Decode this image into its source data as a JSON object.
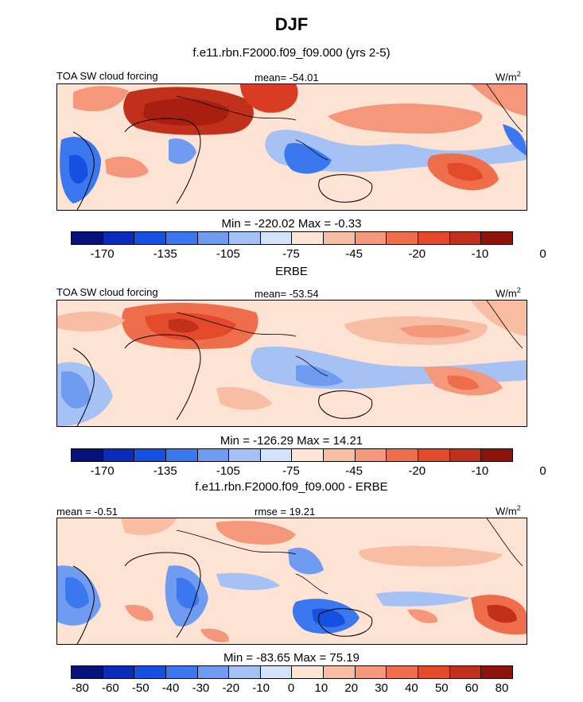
{
  "season": "DJF",
  "colors": {
    "abs": [
      "#08107a",
      "#0a2cb8",
      "#1650e0",
      "#3b78f0",
      "#6f9cf0",
      "#a6c2f4",
      "#d3e3fb",
      "#fde5d6",
      "#f8bea3",
      "#f4977a",
      "#ee6e4c",
      "#e24a2a",
      "#c0301a",
      "#8e140a"
    ],
    "diff": [
      "#08107a",
      "#0a2cb8",
      "#1650e0",
      "#3b78f0",
      "#6f9cf0",
      "#a6c2f4",
      "#d3e3fb",
      "#fde5d6",
      "#f8bea3",
      "#f4977a",
      "#ee6e4c",
      "#e24a2a",
      "#c0301a",
      "#8e140a"
    ]
  },
  "chart_data": [
    {
      "type": "heatmap",
      "title": "f.e11.rbn.F2000.f09_f09.000 (yrs 2-5)",
      "field_label": "TOA SW cloud forcing",
      "mean_label": "mean= -54.01",
      "units": "W/m",
      "units_exp": "2",
      "minmax_label": "Min = -220.02 Max =  -0.33",
      "min": -220.02,
      "max": -0.33,
      "mean": -54.01,
      "colorbar_ticks": [
        "-170",
        "-135",
        "-105",
        "-75",
        "-45",
        "-20",
        "-10",
        "0"
      ]
    },
    {
      "type": "heatmap",
      "title": "ERBE",
      "field_label": "TOA SW cloud forcing",
      "mean_label": "mean= -53.54",
      "units": "W/m",
      "units_exp": "2",
      "minmax_label": "Min = -126.29 Max =  14.21",
      "min": -126.29,
      "max": 14.21,
      "mean": -53.54,
      "colorbar_ticks": [
        "-170",
        "-135",
        "-105",
        "-75",
        "-45",
        "-20",
        "-10",
        "0"
      ]
    },
    {
      "type": "heatmap",
      "title": "f.e11.rbn.F2000.f09_f09.000 - ERBE",
      "mean_label": "mean =  -0.51",
      "rmse_label": "rmse =  19.21",
      "units": "W/m",
      "units_exp": "2",
      "minmax_label": "Min = -83.65 Max =  75.19",
      "min": -83.65,
      "max": 75.19,
      "mean": -0.51,
      "rmse": 19.21,
      "colorbar_ticks": [
        "-80",
        "-60",
        "-50",
        "-40",
        "-30",
        "-20",
        "-10",
        "0",
        "10",
        "20",
        "30",
        "40",
        "50",
        "60",
        "80"
      ]
    }
  ]
}
